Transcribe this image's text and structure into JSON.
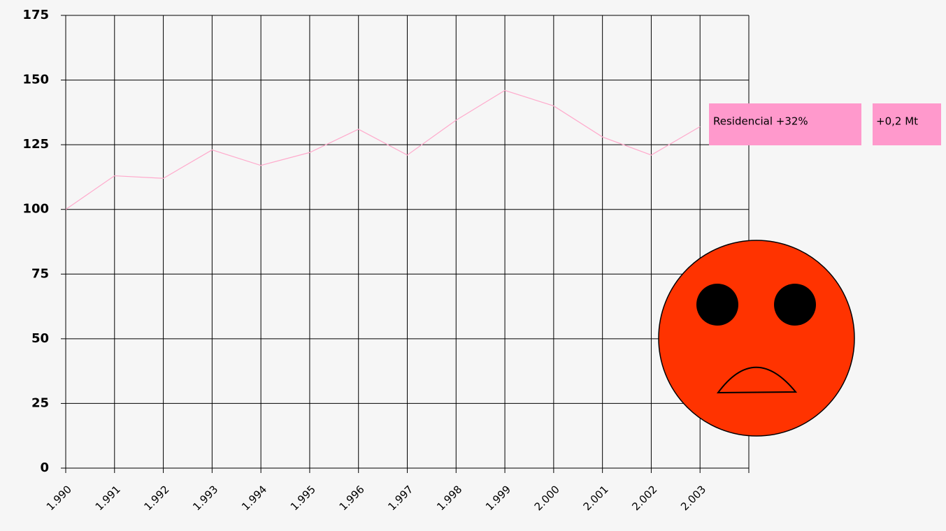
{
  "chart_data": {
    "type": "line",
    "categories": [
      "1.990",
      "1.991",
      "1.992",
      "1.993",
      "1.994",
      "1.995",
      "1.996",
      "1.997",
      "1.998",
      "1.999",
      "2.000",
      "2.001",
      "2.002",
      "2.003",
      null
    ],
    "values": [
      100,
      113,
      112,
      123,
      117,
      122,
      131,
      121,
      134.5,
      146,
      140,
      128,
      121,
      132,
      null
    ],
    "color": "#ffaacc",
    "ylim": [
      0,
      175
    ],
    "yticks": [
      0,
      25,
      50,
      75,
      100,
      125,
      150,
      175
    ],
    "grid": true,
    "annotations": [
      "Residencial +32%",
      "+0,2 Mt"
    ]
  }
}
